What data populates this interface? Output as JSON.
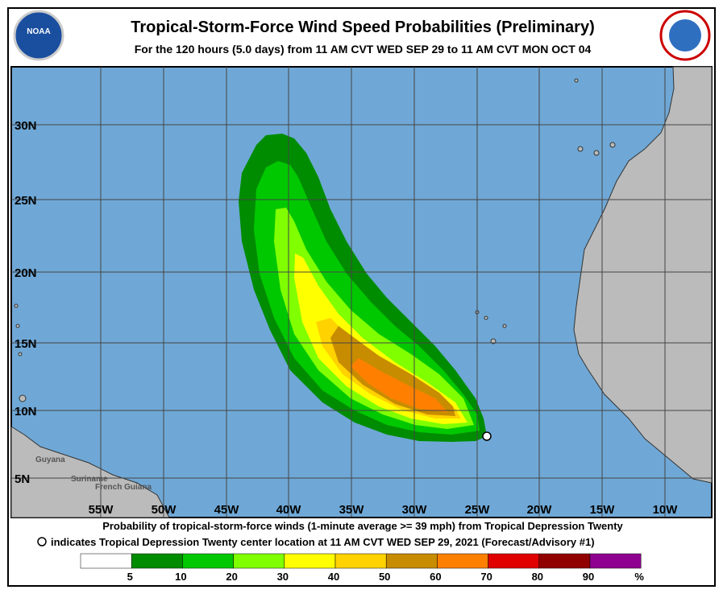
{
  "header": {
    "title": "Tropical-Storm-Force Wind Speed Probabilities (Preliminary)",
    "subtitle": "For the 120 hours (5.0 days) from 11 AM CVT WED SEP 29 to 11 AM CVT MON OCT 04",
    "logo_left": "NOAA"
  },
  "map": {
    "lat_labels": [
      "30N",
      "25N",
      "20N",
      "15N",
      "10N",
      "5N"
    ],
    "lon_labels": [
      "55W",
      "50W",
      "45W",
      "40W",
      "35W",
      "30W",
      "25W",
      "20W",
      "15W",
      "10W"
    ],
    "places": [
      "Guyana",
      "Suriname",
      "French Guiana"
    ]
  },
  "footer": {
    "line1": "Probability of tropical-storm-force winds (1-minute average >= 39 mph) from Tropical Depression Twenty",
    "line2": "indicates Tropical Depression Twenty center location at 11 AM CVT WED SEP 29, 2021 (Forecast/Advisory #1)"
  },
  "legend": {
    "colors": [
      "#ffffff",
      "#008c00",
      "#00c800",
      "#80ff00",
      "#ffff00",
      "#ffd200",
      "#c88c00",
      "#ff8000",
      "#e00000",
      "#900000",
      "#900090"
    ],
    "labels": [
      "5",
      "10",
      "20",
      "30",
      "40",
      "50",
      "60",
      "70",
      "80",
      "90",
      "%"
    ]
  }
}
